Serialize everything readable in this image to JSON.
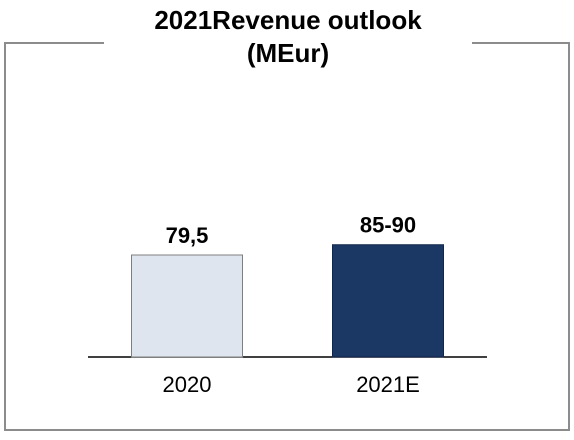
{
  "chart_data": {
    "type": "bar",
    "title": [
      "2021Revenue outlook",
      "(MEur)"
    ],
    "categories": [
      "2020",
      "2021E"
    ],
    "values": [
      79.5,
      87.5
    ],
    "value_labels": [
      "79,5",
      "85-90"
    ],
    "colors": [
      "#dfe5ef",
      "#1b3764"
    ]
  }
}
